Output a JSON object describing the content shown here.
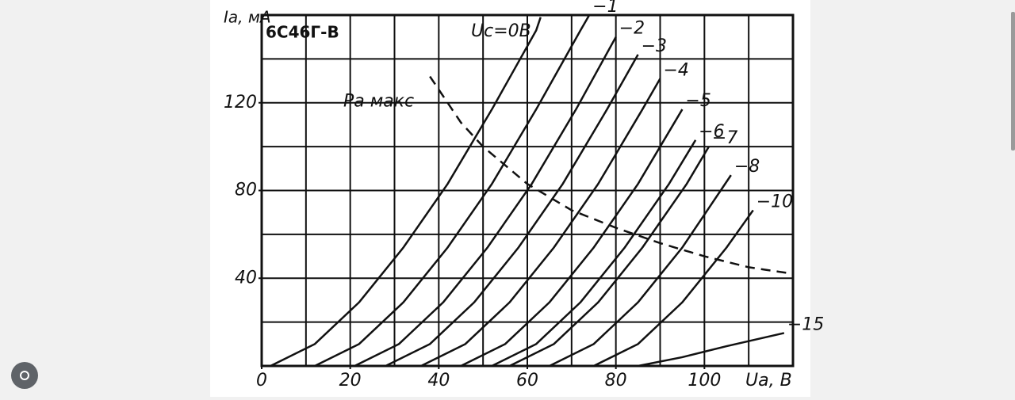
{
  "chart_data": {
    "type": "line",
    "title": "6С46Г-В",
    "y_label": "Ia, мА",
    "x_label": "Ua, B",
    "xlim": [
      0,
      120
    ],
    "ylim": [
      0,
      160
    ],
    "xticks": [
      0,
      20,
      40,
      60,
      80,
      100
    ],
    "yticks": [
      40,
      80,
      120
    ],
    "xgrid_step": 10,
    "ygrid_step": 20,
    "grid": true,
    "series": [
      {
        "name": "Uc=0В",
        "color": "#111111",
        "x": [
          2,
          12,
          22,
          32,
          42,
          52,
          62,
          63
        ],
        "values": [
          0,
          10,
          29,
          54,
          83,
          117,
          153,
          159
        ]
      },
      {
        "name": "−1",
        "color": "#111111",
        "x": [
          12,
          22,
          32,
          42,
          52,
          62,
          72,
          74
        ],
        "values": [
          0,
          10,
          29,
          54,
          83,
          117,
          153,
          160
        ]
      },
      {
        "name": "−2",
        "color": "#111111",
        "x": [
          21,
          31,
          41,
          51,
          61,
          71,
          80
        ],
        "values": [
          0,
          10,
          29,
          54,
          83,
          117,
          150
        ]
      },
      {
        "name": "−3",
        "color": "#111111",
        "x": [
          28,
          38,
          48,
          58,
          68,
          78,
          85
        ],
        "values": [
          0,
          10,
          29,
          54,
          83,
          117,
          142
        ]
      },
      {
        "name": "−4",
        "color": "#111111",
        "x": [
          36,
          46,
          56,
          66,
          76,
          86,
          90
        ],
        "values": [
          0,
          10,
          29,
          54,
          83,
          117,
          131
        ]
      },
      {
        "name": "−5",
        "color": "#111111",
        "x": [
          45,
          55,
          65,
          75,
          85,
          95
        ],
        "values": [
          0,
          10,
          29,
          54,
          83,
          117
        ]
      },
      {
        "name": "−6",
        "color": "#111111",
        "x": [
          52,
          62,
          72,
          82,
          92,
          98
        ],
        "values": [
          0,
          10,
          29,
          54,
          83,
          103
        ]
      },
      {
        "name": "−7",
        "color": "#111111",
        "x": [
          56,
          66,
          76,
          86,
          96,
          101
        ],
        "values": [
          0,
          10,
          29,
          54,
          83,
          100
        ]
      },
      {
        "name": "−8",
        "color": "#111111",
        "x": [
          65,
          75,
          85,
          95,
          106
        ],
        "values": [
          0,
          10,
          29,
          54,
          87
        ]
      },
      {
        "name": "−10",
        "color": "#111111",
        "x": [
          75,
          85,
          95,
          105,
          111
        ],
        "values": [
          0,
          10,
          29,
          54,
          71
        ]
      },
      {
        "name": "−15",
        "color": "#111111",
        "x": [
          85,
          95,
          105,
          118
        ],
        "values": [
          0,
          4,
          9,
          15
        ]
      },
      {
        "name": "Pa макс",
        "color": "#111111",
        "dashed": true,
        "x": [
          38,
          45,
          50,
          60,
          70,
          80,
          90,
          100,
          110,
          120
        ],
        "values": [
          132,
          111,
          100,
          83,
          71,
          63,
          56,
          50,
          45,
          42
        ]
      }
    ]
  }
}
